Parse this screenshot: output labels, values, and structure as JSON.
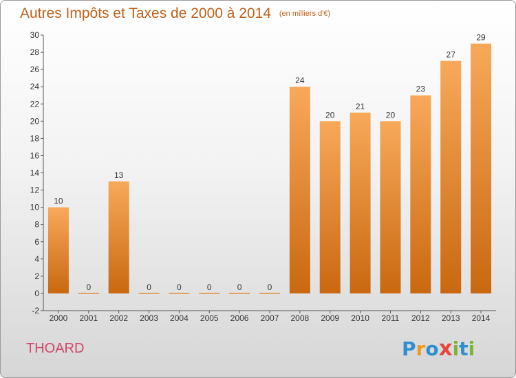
{
  "title": {
    "main": "Autres Impôts et Taxes de 2000 à 2014",
    "unit": "(en milliers d'€)"
  },
  "commune": "THOARD",
  "logo": {
    "text": "Proxiti",
    "letters": [
      {
        "ch": "P",
        "color": "#2e8fd0"
      },
      {
        "ch": "r",
        "color": "#f29a1c"
      },
      {
        "ch": "o",
        "color": "#2e8fd0"
      },
      {
        "ch": "x",
        "color": "#e7463b"
      },
      {
        "ch": "i",
        "color": "#7ab539"
      },
      {
        "ch": "t",
        "color": "#2e8fd0"
      },
      {
        "ch": "i",
        "color": "#7ab539"
      }
    ]
  },
  "colors": {
    "title": "#c0601a",
    "commune": "#d2466a",
    "bar_top": "#f7a95a",
    "bar_bottom": "#c96810",
    "axis_text": "#333333"
  },
  "chart_data": {
    "type": "bar",
    "title": "Autres Impôts et Taxes de 2000 à 2014",
    "ylabel": "",
    "xlabel": "",
    "categories": [
      "2000",
      "2001",
      "2002",
      "2003",
      "2004",
      "2005",
      "2006",
      "2007",
      "2008",
      "2009",
      "2010",
      "2011",
      "2012",
      "2013",
      "2014"
    ],
    "values": [
      10,
      0,
      13,
      0,
      0,
      0,
      0,
      0,
      24,
      20,
      21,
      20,
      23,
      27,
      29
    ],
    "yticks": [
      -2,
      0,
      2,
      4,
      6,
      8,
      10,
      12,
      14,
      16,
      18,
      20,
      22,
      24,
      26,
      28,
      30
    ],
    "ylim": [
      -2,
      30
    ],
    "grid": false,
    "legend": "none"
  }
}
